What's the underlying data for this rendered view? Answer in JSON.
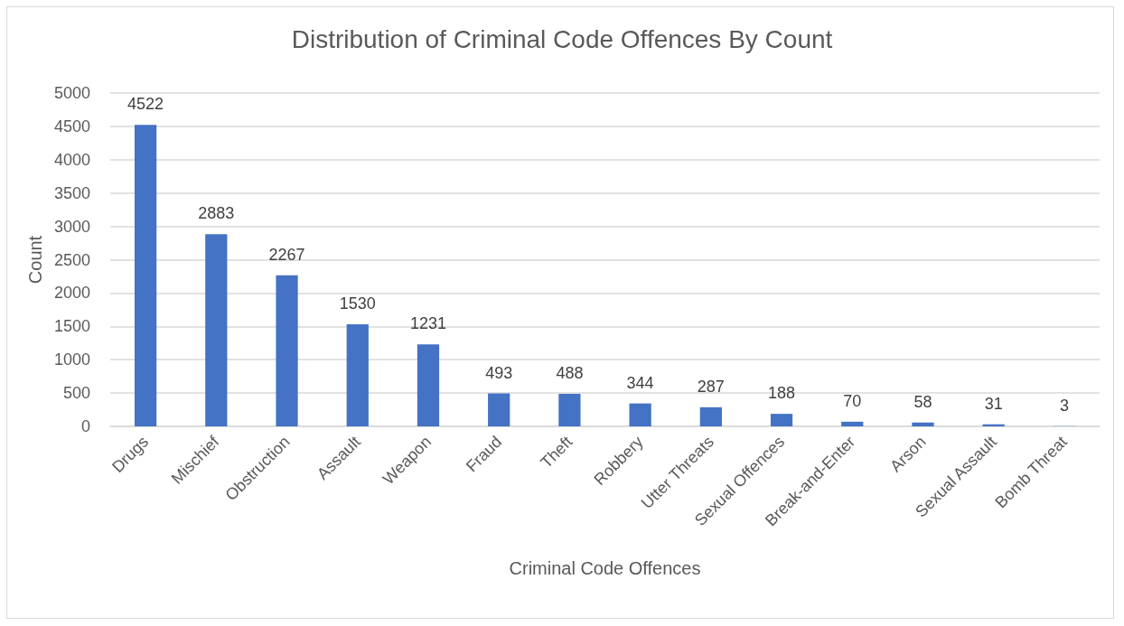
{
  "chart_data": {
    "type": "bar",
    "title": "Distribution of Criminal Code Offences By Count",
    "xlabel": "Criminal Code Offences",
    "ylabel": "Count",
    "categories": [
      "Drugs",
      "Mischief",
      "Obstruction",
      "Assault",
      "Weapon",
      "Fraud",
      "Theft",
      "Robbery",
      "Utter Threats",
      "Sexual Offences",
      "Break-and-Enter",
      "Arson",
      "Sexual Assault",
      "Bomb Threat"
    ],
    "values": [
      4522,
      2883,
      2267,
      1530,
      1231,
      493,
      488,
      344,
      287,
      188,
      70,
      58,
      31,
      3
    ],
    "color": "#4472c4",
    "ylim": [
      0,
      5000
    ],
    "yticks": [
      0,
      500,
      1000,
      1500,
      2000,
      2500,
      3000,
      3500,
      4000,
      4500,
      5000
    ],
    "grid": "y",
    "data_labels": true
  }
}
